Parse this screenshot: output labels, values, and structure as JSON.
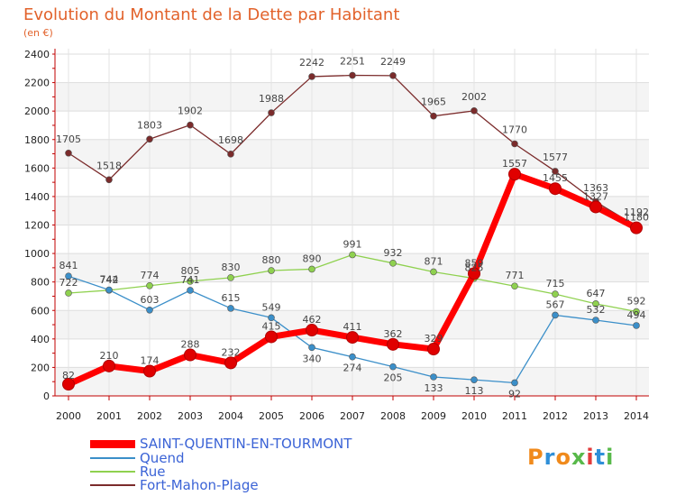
{
  "chart_data": {
    "type": "line",
    "title": "Evolution du Montant de la Dette par Habitant",
    "subtitle": "(en €)",
    "x": [
      "2000",
      "2001",
      "2002",
      "2003",
      "2004",
      "2005",
      "2006",
      "2007",
      "2008",
      "2009",
      "2010",
      "2011",
      "2012",
      "2013",
      "2014"
    ],
    "ylim": [
      0,
      2400
    ],
    "yticks": [
      0,
      200,
      400,
      600,
      800,
      1000,
      1200,
      1400,
      1600,
      1800,
      2000,
      2200,
      2400
    ],
    "grid": true,
    "legend_position": "bottom-left",
    "series": [
      {
        "name": "SAINT-QUENTIN-EN-TOURMONT",
        "color": "#ff0000",
        "values": [
          82,
          210,
          174,
          288,
          232,
          415,
          462,
          411,
          362,
          329,
          859,
          1557,
          1455,
          1327,
          1180
        ]
      },
      {
        "name": "Quend",
        "color": "#3b8fc9",
        "values": [
          841,
          744,
          603,
          741,
          615,
          549,
          340,
          274,
          205,
          133,
          113,
          92,
          567,
          532,
          494
        ]
      },
      {
        "name": "Rue",
        "color": "#8fd14f",
        "values": [
          722,
          742,
          774,
          805,
          830,
          880,
          890,
          991,
          932,
          871,
          825,
          771,
          715,
          647,
          592
        ]
      },
      {
        "name": "Fort-Mahon-Plage",
        "color": "#7b2b2b",
        "values": [
          1705,
          1518,
          1803,
          1902,
          1698,
          1988,
          2242,
          2251,
          2249,
          1965,
          2002,
          1770,
          1577,
          1363,
          1192
        ]
      }
    ]
  },
  "logo": {
    "text": "Proxiti"
  }
}
